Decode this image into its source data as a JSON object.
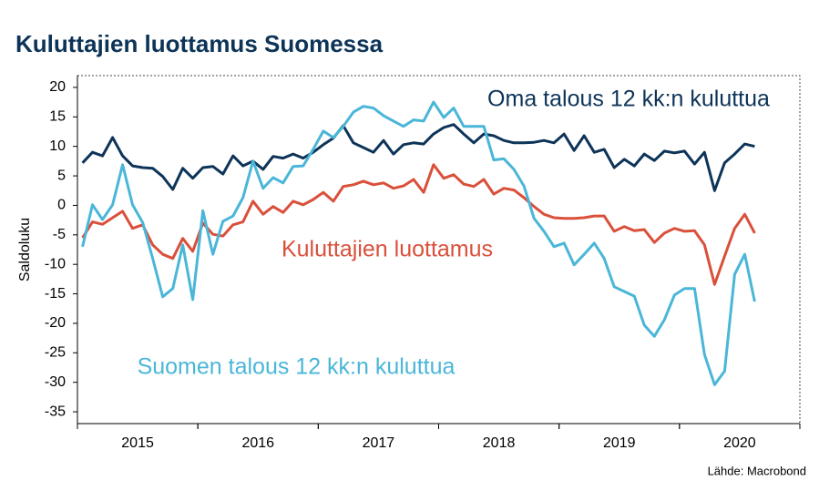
{
  "chart_data": {
    "type": "line",
    "title": "Kuluttajien luottamus Suomessa",
    "y_label": "Saldoluku",
    "source": "Lähde: Macrobond",
    "x": [
      2015.042,
      2015.125,
      2015.208,
      2015.292,
      2015.375,
      2015.458,
      2015.542,
      2015.625,
      2015.708,
      2015.792,
      2015.875,
      2015.958,
      2016.042,
      2016.125,
      2016.208,
      2016.292,
      2016.375,
      2016.458,
      2016.542,
      2016.625,
      2016.708,
      2016.792,
      2016.875,
      2016.958,
      2017.042,
      2017.125,
      2017.208,
      2017.292,
      2017.375,
      2017.458,
      2017.542,
      2017.625,
      2017.708,
      2017.792,
      2017.875,
      2017.958,
      2018.042,
      2018.125,
      2018.208,
      2018.292,
      2018.375,
      2018.458,
      2018.542,
      2018.625,
      2018.708,
      2018.792,
      2018.875,
      2018.958,
      2019.042,
      2019.125,
      2019.208,
      2019.292,
      2019.375,
      2019.458,
      2019.542,
      2019.625,
      2019.708,
      2019.792,
      2019.875,
      2019.958,
      2020.042,
      2020.125,
      2020.208,
      2020.292,
      2020.375,
      2020.458,
      2020.542,
      2020.625
    ],
    "xlim": [
      2015,
      2021
    ],
    "xticks": [
      {
        "value": 2015.5,
        "label": "2015"
      },
      {
        "value": 2016.5,
        "label": "2016"
      },
      {
        "value": 2017.5,
        "label": "2017"
      },
      {
        "value": 2018.5,
        "label": "2018"
      },
      {
        "value": 2019.5,
        "label": "2019"
      },
      {
        "value": 2020.5,
        "label": "2020"
      }
    ],
    "ylim": [
      -37,
      22
    ],
    "yticks": [
      -35,
      -30,
      -25,
      -20,
      -15,
      -10,
      -5,
      0,
      5,
      10,
      15,
      20
    ],
    "series": [
      {
        "name": "Oma talous 12 kk:n kuluttua",
        "color": "#0d3458",
        "values": [
          7.2,
          9,
          8.4,
          11.5,
          8.4,
          6.7,
          6.4,
          6.3,
          4.9,
          2.7,
          6.3,
          4.6,
          6.4,
          6.6,
          5.3,
          8.4,
          6.7,
          7.5,
          6.1,
          8.3,
          8,
          8.7,
          8,
          9,
          10.3,
          11.4,
          13.5,
          10.6,
          9.8,
          9,
          11,
          8.7,
          10.3,
          10.6,
          10.4,
          12.1,
          13.2,
          13.7,
          12.1,
          10.6,
          12.1,
          11.8,
          11,
          10.6,
          10.6,
          10.7,
          11,
          10.6,
          12.1,
          9.3,
          11.8,
          9,
          9.5,
          6.4,
          7.8,
          6.7,
          8.7,
          7.6,
          9.2,
          8.9,
          9.2,
          7,
          9,
          2.5,
          7.2,
          8.7,
          10.4,
          10
        ]
      },
      {
        "name": "Kuluttajien luottamus",
        "color": "#d9503b",
        "values": [
          -5.5,
          -2.8,
          -3.2,
          -2.1,
          -1,
          -3.9,
          -3.3,
          -6.7,
          -8.3,
          -9,
          -5.6,
          -7.8,
          -3,
          -4.9,
          -5.2,
          -3.3,
          -2.8,
          0.7,
          -1.5,
          -0.2,
          -1.2,
          0.7,
          0.1,
          1,
          2.2,
          0.7,
          3.2,
          3.5,
          4.1,
          3.5,
          3.8,
          2.9,
          3.3,
          4.4,
          2.2,
          6.9,
          4.6,
          5.2,
          3.6,
          3.2,
          4.4,
          1.9,
          2.9,
          2.6,
          1.3,
          -0.2,
          -1.5,
          -2.1,
          -2.2,
          -2.2,
          -2.1,
          -1.8,
          -1.8,
          -4.4,
          -3.6,
          -4.3,
          -4.1,
          -6.3,
          -4.7,
          -3.9,
          -4.4,
          -4.3,
          -6.7,
          -13.4,
          -8.6,
          -3.9,
          -1.5,
          -4.7
        ]
      },
      {
        "name": "Suomen talous 12 kk:n kuluttua",
        "color": "#4ab6d8",
        "values": [
          -7,
          0.1,
          -2.4,
          0.1,
          6.9,
          0.1,
          -2.9,
          -9,
          -15.5,
          -14.1,
          -6.7,
          -16,
          -0.9,
          -8.3,
          -2.7,
          -1.8,
          1.3,
          7.5,
          2.9,
          4.7,
          3.8,
          6.6,
          6.7,
          9.5,
          12.6,
          11.5,
          13.4,
          15.8,
          16.8,
          16.5,
          15.2,
          14.3,
          13.4,
          14.5,
          14.3,
          17.5,
          14.9,
          16.5,
          13.4,
          13.4,
          13.4,
          7.7,
          7.9,
          6.1,
          3.3,
          -2.2,
          -4.4,
          -7,
          -6.4,
          -10.1,
          -8.3,
          -6.4,
          -9,
          -13.8,
          -14.6,
          -15.4,
          -20.3,
          -22.2,
          -19.4,
          -15.2,
          -14.1,
          -14.1,
          -25.3,
          -30.4,
          -28.1,
          -11.7,
          -8.3,
          -16.3
        ]
      }
    ]
  }
}
